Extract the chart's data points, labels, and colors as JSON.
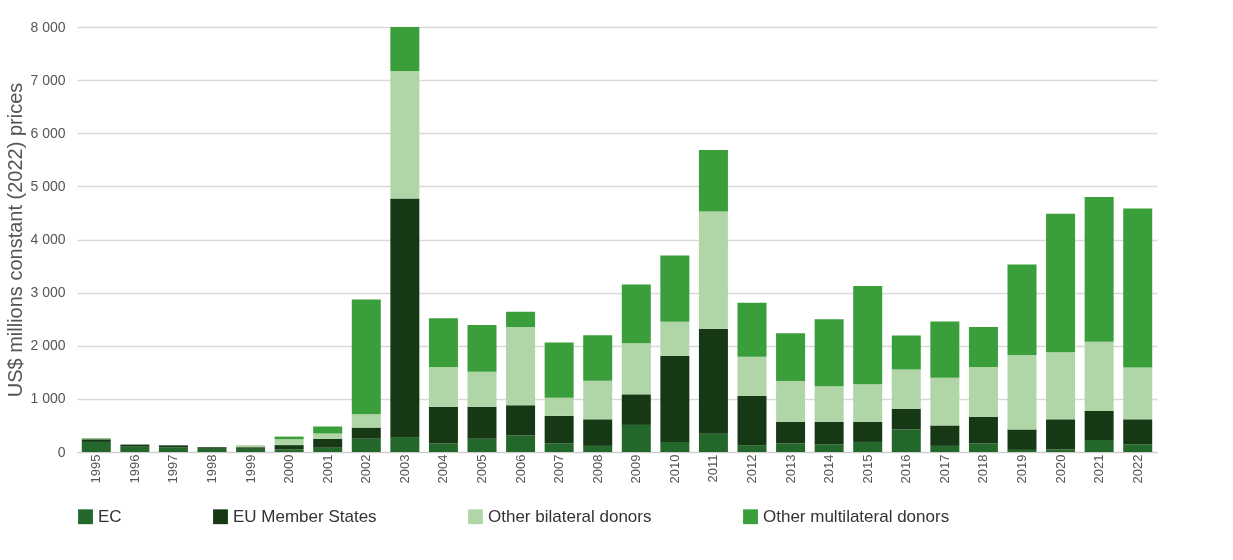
{
  "chart_data": {
    "type": "bar",
    "stacked": true,
    "ylabel": "US$ millions constant (2022) prices",
    "categories": [
      "1995",
      "1996",
      "1997",
      "1998",
      "1999",
      "2000",
      "2001",
      "2002",
      "2003",
      "2004",
      "2005",
      "2006",
      "2007",
      "2008",
      "2009",
      "2010",
      "2011",
      "2012",
      "2013",
      "2014",
      "2015",
      "2016",
      "2017",
      "2018",
      "2019",
      "2020",
      "2021",
      "2022"
    ],
    "series": [
      {
        "name": "EC",
        "color": "#23672a",
        "values": [
          190,
          100,
          90,
          60,
          60,
          50,
          80,
          250,
          280,
          160,
          250,
          310,
          165,
          115,
          510,
          190,
          345,
          130,
          160,
          145,
          190,
          425,
          115,
          160,
          40,
          50,
          225,
          145
        ]
      },
      {
        "name": "EU Member States",
        "color": "#173814",
        "values": [
          50,
          40,
          35,
          30,
          30,
          80,
          170,
          210,
          4490,
          690,
          600,
          570,
          515,
          500,
          575,
          1620,
          1975,
          925,
          405,
          420,
          375,
          390,
          385,
          500,
          385,
          565,
          545,
          470
        ]
      },
      {
        "name": "Other bilateral donors",
        "color": "#b0d6a8",
        "values": [
          10,
          null,
          0,
          null,
          40,
          110,
          100,
          250,
          2400,
          750,
          660,
          1470,
          340,
          725,
          960,
          640,
          2205,
          740,
          770,
          675,
          710,
          740,
          900,
          940,
          1400,
          1265,
          1305,
          975
        ]
      },
      {
        "name": "Other multilateral donors",
        "color": "#3a9e3a",
        "values": [
          10,
          0,
          0,
          0,
          0,
          50,
          130,
          2160,
          830,
          920,
          880,
          290,
          1040,
          860,
          1110,
          1250,
          1160,
          1015,
          900,
          1260,
          1850,
          640,
          1055,
          755,
          1705,
          2605,
          2725,
          2995
        ]
      }
    ],
    "ylim": [
      0,
      8000
    ],
    "yticks": [
      0,
      {
        "value": 1000,
        "label": "1 000"
      },
      {
        "value": 2000,
        "label": "2 000"
      },
      {
        "value": 3000,
        "label": "3 000"
      },
      {
        "value": 4000,
        "label": "4 000"
      },
      {
        "value": 5000,
        "label": "5 000"
      },
      {
        "value": 6000,
        "label": "6 000"
      },
      {
        "value": 7000,
        "label": "7 000"
      },
      {
        "value": 8000,
        "label": "8 000"
      }
    ],
    "grid": "y",
    "legend": "bottom"
  }
}
